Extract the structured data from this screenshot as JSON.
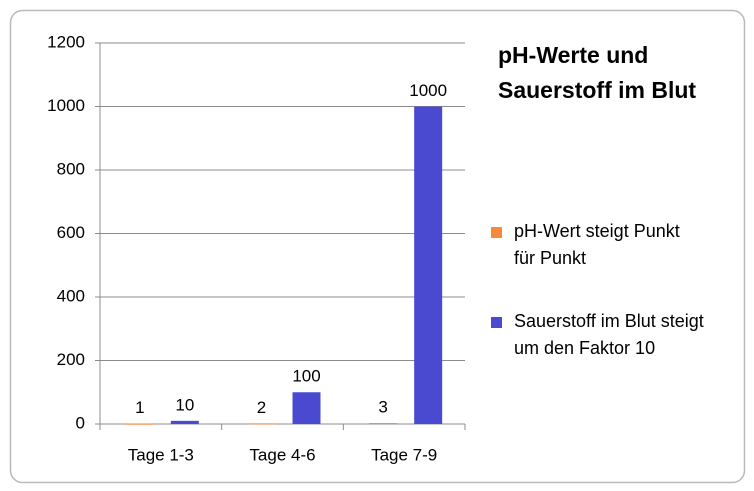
{
  "chart_data": {
    "type": "bar",
    "title": "pH-Werte und Sauerstoff im Blut",
    "categories": [
      "Tage 1-3",
      "Tage 4-6",
      "Tage 7-9"
    ],
    "series": [
      {
        "name": "pH-Wert steigt Punkt für Punkt",
        "color": "#f7893a",
        "values": [
          1,
          2,
          3
        ]
      },
      {
        "name": "Sauerstoff im Blut steigt um den Faktor 10",
        "color": "#4a4ad0",
        "values": [
          10,
          100,
          1000
        ]
      }
    ],
    "ylim": [
      0,
      1200
    ],
    "yticks": [
      0,
      200,
      400,
      600,
      800,
      1000,
      1200
    ],
    "grid": true,
    "legend": "right"
  }
}
